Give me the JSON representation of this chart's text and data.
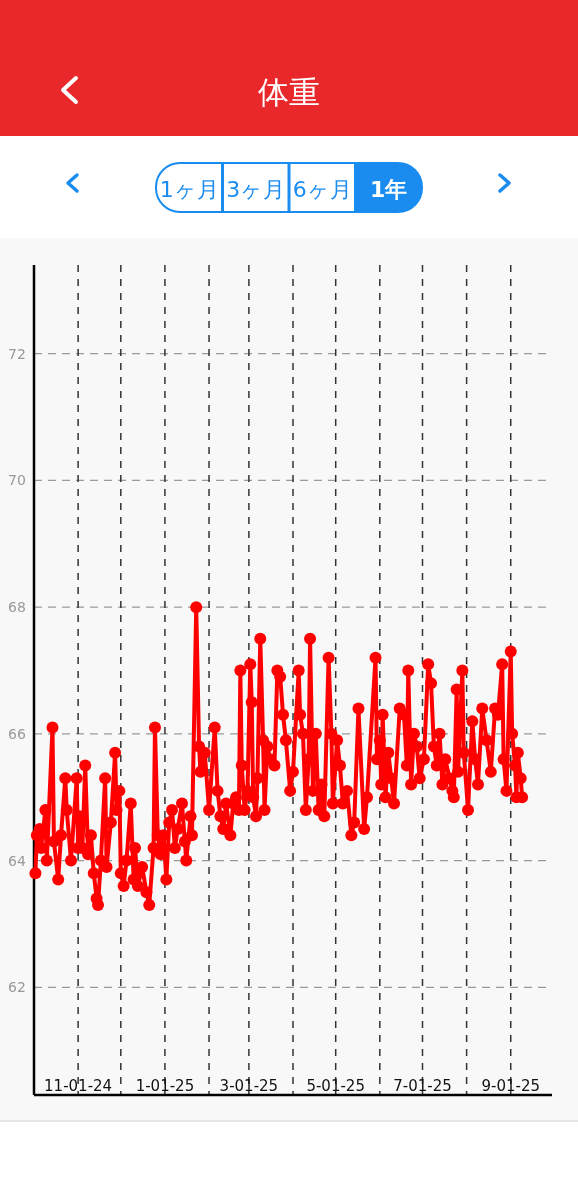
{
  "chart_data": {
    "type": "line",
    "title": "体重",
    "annotations": [
      "1ヶ月",
      "3ヶ月",
      "6ヶ月",
      "1年"
    ],
    "xlim": [
      "2024-10-01",
      "2025-09-30"
    ],
    "xticks": [
      {
        "value": "2024-11-01",
        "label": "11-01-24"
      },
      {
        "value": "2024-12-01",
        "label": null
      },
      {
        "value": "2025-01-01",
        "label": "1-01-25"
      },
      {
        "value": "2025-02-01",
        "label": null
      },
      {
        "value": "2025-03-01",
        "label": "3-01-25"
      },
      {
        "value": "2025-04-01",
        "label": null
      },
      {
        "value": "2025-05-01",
        "label": "5-01-25"
      },
      {
        "value": "2025-06-01",
        "label": null
      },
      {
        "value": "2025-07-01",
        "label": "7-01-25"
      },
      {
        "value": "2025-08-01",
        "label": null
      },
      {
        "value": "2025-09-01",
        "label": "9-01-25"
      }
    ],
    "ylim": [
      60.3,
      73.4
    ],
    "yticks": [
      62,
      64,
      66,
      68,
      70,
      72
    ],
    "grid": true,
    "marker": "circle",
    "line_style": "solid",
    "x": [
      "2024-10-02",
      "2024-10-03",
      "2024-10-05",
      "2024-10-06",
      "2024-10-09",
      "2024-10-10",
      "2024-10-14",
      "2024-10-15",
      "2024-10-18",
      "2024-10-20",
      "2024-10-23",
      "2024-10-24",
      "2024-10-27",
      "2024-10-31",
      "2024-11-01",
      "2024-11-02",
      "2024-11-04",
      "2024-11-06",
      "2024-11-08",
      "2024-11-10",
      "2024-11-12",
      "2024-11-14",
      "2024-11-15",
      "2024-11-17",
      "2024-11-20",
      "2024-11-21",
      "2024-11-24",
      "2024-11-27",
      "2024-11-28",
      "2024-11-30",
      "2024-12-01",
      "2024-12-03",
      "2024-12-05",
      "2024-12-08",
      "2024-12-10",
      "2024-12-11",
      "2024-12-13",
      "2024-12-16",
      "2024-12-19",
      "2024-12-21",
      "2024-12-24",
      "2024-12-25",
      "2024-12-27",
      "2024-12-29",
      "2024-12-31",
      "2025-01-02",
      "2025-01-04",
      "2025-01-06",
      "2025-01-08",
      "2025-01-10",
      "2025-01-13",
      "2025-01-15",
      "2025-01-16",
      "2025-01-19",
      "2025-01-20",
      "2025-01-23",
      "2025-01-25",
      "2025-01-26",
      "2025-01-29",
      "2025-02-01",
      "2025-02-05",
      "2025-02-07",
      "2025-02-09",
      "2025-02-11",
      "2025-02-13",
      "2025-02-16",
      "2025-02-18",
      "2025-02-20",
      "2025-02-22",
      "2025-02-23",
      "2025-02-24",
      "2025-02-26",
      "2025-02-28",
      "2025-03-02",
      "2025-03-03",
      "2025-03-04",
      "2025-03-06",
      "2025-03-07",
      "2025-03-09",
      "2025-03-11",
      "2025-03-12",
      "2025-03-14",
      "2025-03-16",
      "2025-03-19",
      "2025-03-21",
      "2025-03-23",
      "2025-03-25",
      "2025-03-27",
      "2025-03-30",
      "2025-04-01",
      "2025-04-05",
      "2025-04-06",
      "2025-04-08",
      "2025-04-10",
      "2025-04-12",
      "2025-04-13",
      "2025-04-15",
      "2025-04-17",
      "2025-04-19",
      "2025-04-21",
      "2025-04-23",
      "2025-04-26",
      "2025-04-28",
      "2025-04-29",
      "2025-05-02",
      "2025-05-04",
      "2025-05-06",
      "2025-05-09",
      "2025-05-12",
      "2025-05-14",
      "2025-05-17",
      "2025-05-21",
      "2025-05-23",
      "2025-05-29",
      "2025-05-30",
      "2025-06-01",
      "2025-06-02",
      "2025-06-03",
      "2025-06-05",
      "2025-06-07",
      "2025-06-09",
      "2025-06-11",
      "2025-06-15",
      "2025-06-18",
      "2025-06-20",
      "2025-06-21",
      "2025-06-23",
      "2025-06-25",
      "2025-06-27",
      "2025-06-29",
      "2025-07-02",
      "2025-07-05",
      "2025-07-07",
      "2025-07-09",
      "2025-07-11",
      "2025-07-13",
      "2025-07-15",
      "2025-07-17",
      "2025-07-20",
      "2025-07-22",
      "2025-07-23",
      "2025-07-25",
      "2025-07-26",
      "2025-07-29",
      "2025-07-30",
      "2025-08-02",
      "2025-08-05",
      "2025-08-07",
      "2025-08-09",
      "2025-08-12",
      "2025-08-15",
      "2025-08-18",
      "2025-08-21",
      "2025-08-23",
      "2025-08-26",
      "2025-08-27",
      "2025-08-29",
      "2025-09-01",
      "2025-09-02",
      "2025-09-04",
      "2025-09-05",
      "2025-09-06",
      "2025-09-08",
      "2025-09-09"
    ],
    "series": [
      {
        "color": "#ff0000",
        "values": [
          63.8,
          64.4,
          64.5,
          64.2,
          64.8,
          64.0,
          66.1,
          64.3,
          63.7,
          64.4,
          65.3,
          64.8,
          64.0,
          65.3,
          64.2,
          64.7,
          64.2,
          65.5,
          64.1,
          64.4,
          63.8,
          63.4,
          63.3,
          64.0,
          65.3,
          63.9,
          64.6,
          65.7,
          64.8,
          65.1,
          63.8,
          63.6,
          64.0,
          64.9,
          63.7,
          64.2,
          63.6,
          63.9,
          63.5,
          63.3,
          64.2,
          66.1,
          64.4,
          64.1,
          64.4,
          63.7,
          64.6,
          64.8,
          64.2,
          64.5,
          64.9,
          64.3,
          64.0,
          64.7,
          64.4,
          68.0,
          65.8,
          65.4,
          65.7,
          64.8,
          66.1,
          65.1,
          64.7,
          64.5,
          64.9,
          64.4,
          64.9,
          65.0,
          64.8,
          67.0,
          65.5,
          64.8,
          65.1,
          67.1,
          66.5,
          65.0,
          64.7,
          65.3,
          67.5,
          65.9,
          64.8,
          65.8,
          65.6,
          65.5,
          67.0,
          66.9,
          66.3,
          65.9,
          65.1,
          65.4,
          67.0,
          66.3,
          66.0,
          64.8,
          65.6,
          67.5,
          65.1,
          66.0,
          64.8,
          65.2,
          64.7,
          67.2,
          66.0,
          64.9,
          65.9,
          65.5,
          64.9,
          65.1,
          64.4,
          64.6,
          66.4,
          64.5,
          65.0,
          67.2,
          65.6,
          65.9,
          65.2,
          66.3,
          65.0,
          65.7,
          65.3,
          64.9,
          66.4,
          66.3,
          65.5,
          67.0,
          65.2,
          66.0,
          65.8,
          65.3,
          65.6,
          67.1,
          66.8,
          65.8,
          65.5,
          66.0,
          65.2,
          65.6,
          65.3,
          65.1,
          65.0,
          66.7,
          65.4,
          67.0,
          65.7,
          64.8,
          66.2,
          65.6,
          65.2,
          66.4,
          65.9,
          65.4,
          66.4,
          66.3,
          67.1,
          65.6,
          65.1,
          67.3,
          66.0,
          65.5,
          65.0,
          65.7,
          65.3,
          65.0
        ]
      }
    ]
  }
}
